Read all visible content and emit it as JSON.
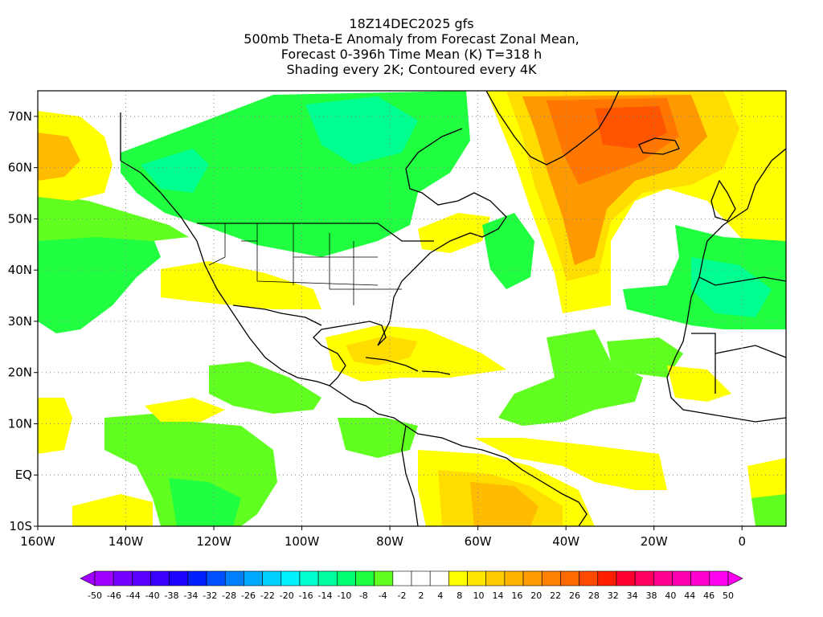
{
  "title": {
    "lines": [
      "18Z14DEC2025 gfs",
      "500mb Theta-E Anomaly from Forecast Zonal Mean,",
      "Forecast 0-396h Time Mean (K) T=318 h",
      "Shading every 2K; Contoured every 4K"
    ]
  },
  "axes": {
    "lat_labels": [
      "70N",
      "60N",
      "50N",
      "40N",
      "30N",
      "20N",
      "10N",
      "EQ",
      "10S"
    ],
    "lat_values": [
      70,
      60,
      50,
      40,
      30,
      20,
      10,
      0,
      -10
    ],
    "lon_labels": [
      "160W",
      "140W",
      "120W",
      "100W",
      "80W",
      "60W",
      "40W",
      "20W",
      "0"
    ],
    "lon_values": [
      -160,
      -140,
      -120,
      -100,
      -80,
      -60,
      -40,
      -20,
      0
    ],
    "lon_range": [
      -160,
      10
    ],
    "lat_range": [
      -10,
      75
    ],
    "grid": "dotted"
  },
  "colorbar": {
    "labels": [
      "-50",
      "-46",
      "-44",
      "-40",
      "-38",
      "-34",
      "-32",
      "-28",
      "-26",
      "-22",
      "-20",
      "-16",
      "-14",
      "-10",
      "-8",
      "-4",
      "-2",
      "2",
      "4",
      "8",
      "10",
      "14",
      "16",
      "20",
      "22",
      "26",
      "28",
      "32",
      "34",
      "38",
      "40",
      "44",
      "46",
      "50"
    ],
    "colors": [
      "#a000ff",
      "#7800ff",
      "#5a00ff",
      "#3c00ff",
      "#1e00ff",
      "#0020ff",
      "#0050ff",
      "#0080ff",
      "#00a8ff",
      "#00d0ff",
      "#00f0ff",
      "#00ffd0",
      "#00ffa0",
      "#00ff70",
      "#20ff40",
      "#60ff20",
      "#ffffff",
      "#ffffff",
      "#ffffff",
      "#ffff00",
      "#ffe600",
      "#ffcc00",
      "#ffb400",
      "#ff9c00",
      "#ff8200",
      "#ff6a00",
      "#ff4800",
      "#ff2000",
      "#ff0030",
      "#ff0060",
      "#ff0090",
      "#ff00b0",
      "#ff00d0",
      "#ff00f0"
    ]
  },
  "field_colors": {
    "green_strong": "#00ff50",
    "green": "#20ff40",
    "lime": "#60ff20",
    "cyan_green": "#00ffa0",
    "yellow": "#ffff00",
    "gold": "#ffdd00",
    "orange_light": "#ffbb00",
    "orange": "#ff9900",
    "orange_dark": "#ff7700",
    "red_orange": "#ff5500"
  }
}
